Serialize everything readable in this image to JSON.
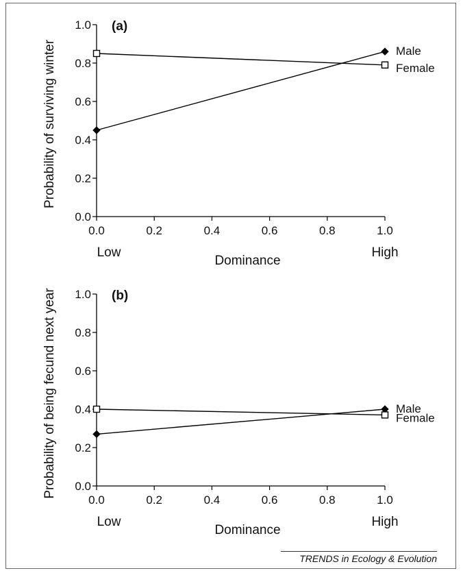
{
  "credit": "TRENDS in Ecology & Evolution",
  "colors": {
    "line": "#000000",
    "frame": "#666666",
    "male_marker": "#000000",
    "female_marker": "#ffffff"
  },
  "chart_data": [
    {
      "type": "line",
      "panel_label": "(a)",
      "xlabel": "Dominance",
      "ylabel": "Probability of surviving winter",
      "xlim": [
        0.0,
        1.0
      ],
      "ylim": [
        0.0,
        1.0
      ],
      "xticks": [
        "0.0",
        "0.2",
        "0.4",
        "0.6",
        "0.8",
        "1.0"
      ],
      "yticks": [
        "0.0",
        "0.2",
        "0.4",
        "0.6",
        "0.8",
        "1.0"
      ],
      "x_end_labels": [
        "Low",
        "High"
      ],
      "grid": false,
      "series": [
        {
          "name": "Male",
          "marker": "filled-diamond",
          "x": [
            0.0,
            1.0
          ],
          "y": [
            0.45,
            0.86
          ]
        },
        {
          "name": "Female",
          "marker": "open-square",
          "x": [
            0.0,
            1.0
          ],
          "y": [
            0.85,
            0.79
          ]
        }
      ]
    },
    {
      "type": "line",
      "panel_label": "(b)",
      "xlabel": "Dominance",
      "ylabel": "Probability of being fecund next year",
      "xlim": [
        0.0,
        1.0
      ],
      "ylim": [
        0.0,
        1.0
      ],
      "xticks": [
        "0.0",
        "0.2",
        "0.4",
        "0.6",
        "0.8",
        "1.0"
      ],
      "yticks": [
        "0.0",
        "0.2",
        "0.4",
        "0.6",
        "0.8",
        "1.0"
      ],
      "x_end_labels": [
        "Low",
        "High"
      ],
      "grid": false,
      "series": [
        {
          "name": "Male",
          "marker": "filled-diamond",
          "x": [
            0.0,
            1.0
          ],
          "y": [
            0.27,
            0.4
          ]
        },
        {
          "name": "Female",
          "marker": "open-square",
          "x": [
            0.0,
            1.0
          ],
          "y": [
            0.4,
            0.37
          ]
        }
      ]
    }
  ]
}
